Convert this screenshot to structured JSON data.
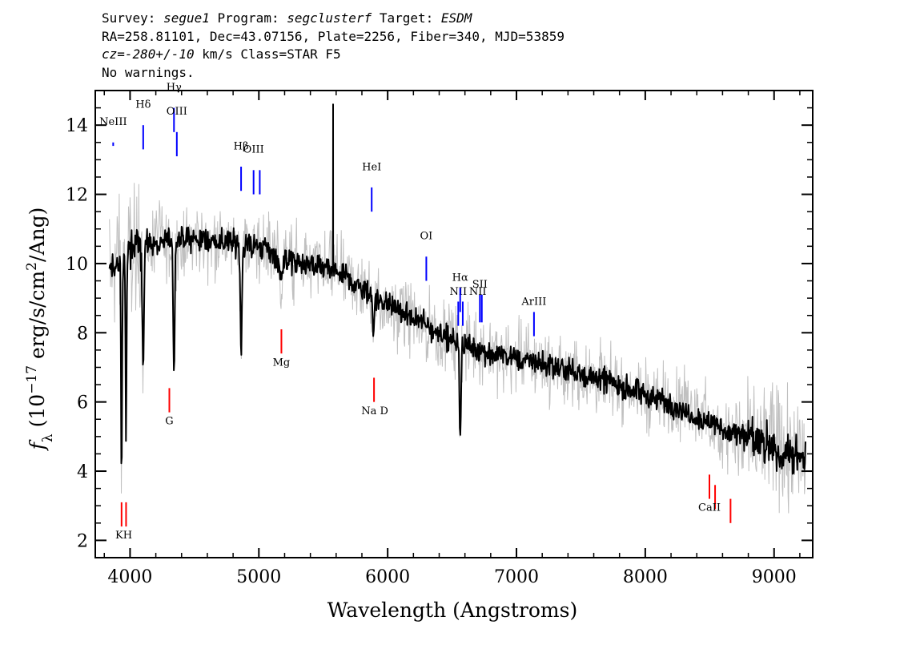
{
  "header": {
    "survey_label": "Survey:",
    "survey": "segue1",
    "program_label": "Program:",
    "program": "segclusterf",
    "target_label": "Target:",
    "target": "ESDM",
    "line2": "RA=258.81101, Dec=43.07156, Plate=2256, Fiber=340, MJD=53859",
    "cz_value": "cz=-280+/-10",
    "cz_rest": " km/s Class=STAR F5",
    "line4": "No warnings."
  },
  "colors": {
    "flux": "#000000",
    "error_band": "#c0c0c0",
    "emission": "#0000ff",
    "absorption": "#ff0000"
  },
  "chart_data": {
    "type": "line",
    "title": "",
    "xlabel": "Wavelength (Angstroms)",
    "ylabel_parts": [
      "f",
      "λ",
      " (10",
      "−17",
      " erg/s/cm",
      "2",
      "/Ang)"
    ],
    "xlim": [
      3730,
      9300
    ],
    "ylim": [
      1.5,
      15
    ],
    "x_ticks": [
      4000,
      5000,
      6000,
      7000,
      8000,
      9000
    ],
    "x_tick_labels": [
      "4000",
      "5000",
      "6000",
      "7000",
      "8000",
      "9000"
    ],
    "y_ticks": [
      2,
      4,
      6,
      8,
      10,
      12,
      14
    ],
    "y_tick_labels": [
      "2",
      "4",
      "6",
      "8",
      "10",
      "12",
      "14"
    ],
    "grid": false,
    "continuum": {
      "x": [
        3850,
        4000,
        4200,
        4500,
        4800,
        5000,
        5300,
        5600,
        5900,
        6200,
        6500,
        6800,
        7100,
        7400,
        7700,
        8000,
        8300,
        8600,
        8900,
        9250
      ],
      "y": [
        9.8,
        10.4,
        10.6,
        10.7,
        10.6,
        10.5,
        10.0,
        9.8,
        9.0,
        8.4,
        7.8,
        7.4,
        7.2,
        6.9,
        6.6,
        6.2,
        5.8,
        5.2,
        4.8,
        4.3
      ]
    },
    "absorption_features": [
      {
        "x": 3934,
        "depth": 6.5,
        "width": 6
      },
      {
        "x": 3969,
        "depth": 5.2,
        "width": 6
      },
      {
        "x": 4102,
        "depth": 3.5,
        "width": 8
      },
      {
        "x": 4341,
        "depth": 3.8,
        "width": 8
      },
      {
        "x": 4862,
        "depth": 3.0,
        "width": 9
      },
      {
        "x": 5170,
        "depth": 0.6,
        "width": 20
      },
      {
        "x": 5890,
        "depth": 1.0,
        "width": 8
      },
      {
        "x": 6563,
        "depth": 2.7,
        "width": 8
      }
    ],
    "spikes": [
      {
        "x": 5577,
        "peak": 14.6
      }
    ],
    "emission_lines": [
      {
        "name": "NeIII",
        "x": 3869,
        "top": 13.5,
        "bottom": 13.4,
        "label_y": 14.0
      },
      {
        "name": "Hδ",
        "x": 4102,
        "top": 14.0,
        "bottom": 13.3,
        "label_y": 14.5
      },
      {
        "name": "Hγ",
        "x": 4341,
        "top": 14.5,
        "bottom": 13.8,
        "label_y": 15.0
      },
      {
        "name": "OIII",
        "x": 4363,
        "top": 13.8,
        "bottom": 13.1,
        "label_y": 14.3
      },
      {
        "name": "Hβ",
        "x": 4862,
        "top": 12.8,
        "bottom": 12.1,
        "label_y": 13.3
      },
      {
        "name": "OIII",
        "x": 4959,
        "top": 12.7,
        "bottom": 12.0,
        "label_y": 13.2
      },
      {
        "name": "",
        "x": 5007,
        "top": 12.7,
        "bottom": 12.0,
        "label_y": 0
      },
      {
        "name": "HeI",
        "x": 5876,
        "top": 12.2,
        "bottom": 11.5,
        "label_y": 12.7
      },
      {
        "name": "OI",
        "x": 6300,
        "top": 10.2,
        "bottom": 9.5,
        "label_y": 10.7
      },
      {
        "name": "NII",
        "x": 6548,
        "top": 8.9,
        "bottom": 8.2,
        "label_y": 9.1
      },
      {
        "name": "Hα",
        "x": 6563,
        "top": 9.3,
        "bottom": 8.6,
        "label_y": 9.5
      },
      {
        "name": "",
        "x": 6583,
        "top": 8.9,
        "bottom": 8.2,
        "label_y": 0
      },
      {
        "name": "SII",
        "x": 6716,
        "top": 9.1,
        "bottom": 8.3,
        "label_y": 9.3
      },
      {
        "name": "",
        "x": 6731,
        "top": 9.1,
        "bottom": 8.3,
        "label_y": 0
      },
      {
        "name": "ArIII",
        "x": 7136,
        "top": 8.6,
        "bottom": 7.9,
        "label_y": 8.8
      }
    ],
    "emission_extra_labels": [
      {
        "name": "NII",
        "x": 6700,
        "label_y": 9.1
      }
    ],
    "absorption_lines": [
      {
        "name": "K",
        "x": 3934,
        "top": 3.1,
        "bottom": 2.4
      },
      {
        "name": "H",
        "x": 3969,
        "top": 3.1,
        "bottom": 2.4
      },
      {
        "name": "G",
        "x": 4305,
        "top": 6.4,
        "bottom": 5.7
      },
      {
        "name": "Mg",
        "x": 5175,
        "top": 8.1,
        "bottom": 7.4
      },
      {
        "name": "Na",
        "x": 5894,
        "top": 6.7,
        "bottom": 6.0
      },
      {
        "name": "CaII",
        "x": 8498,
        "top": 3.9,
        "bottom": 3.2
      },
      {
        "name": "",
        "x": 8542,
        "top": 3.6,
        "bottom": 2.9
      },
      {
        "name": "",
        "x": 8662,
        "top": 3.2,
        "bottom": 2.5
      }
    ],
    "absorption_labels": [
      {
        "text": "KH",
        "x": 3951,
        "y": 2.05
      },
      {
        "text": "G",
        "x": 4305,
        "y": 5.35
      },
      {
        "text": "Mg",
        "x": 5175,
        "y": 7.05
      },
      {
        "text": "Na  D",
        "x": 5900,
        "y": 5.65
      },
      {
        "text": "CaII",
        "x": 8498,
        "y": 2.85
      }
    ]
  }
}
